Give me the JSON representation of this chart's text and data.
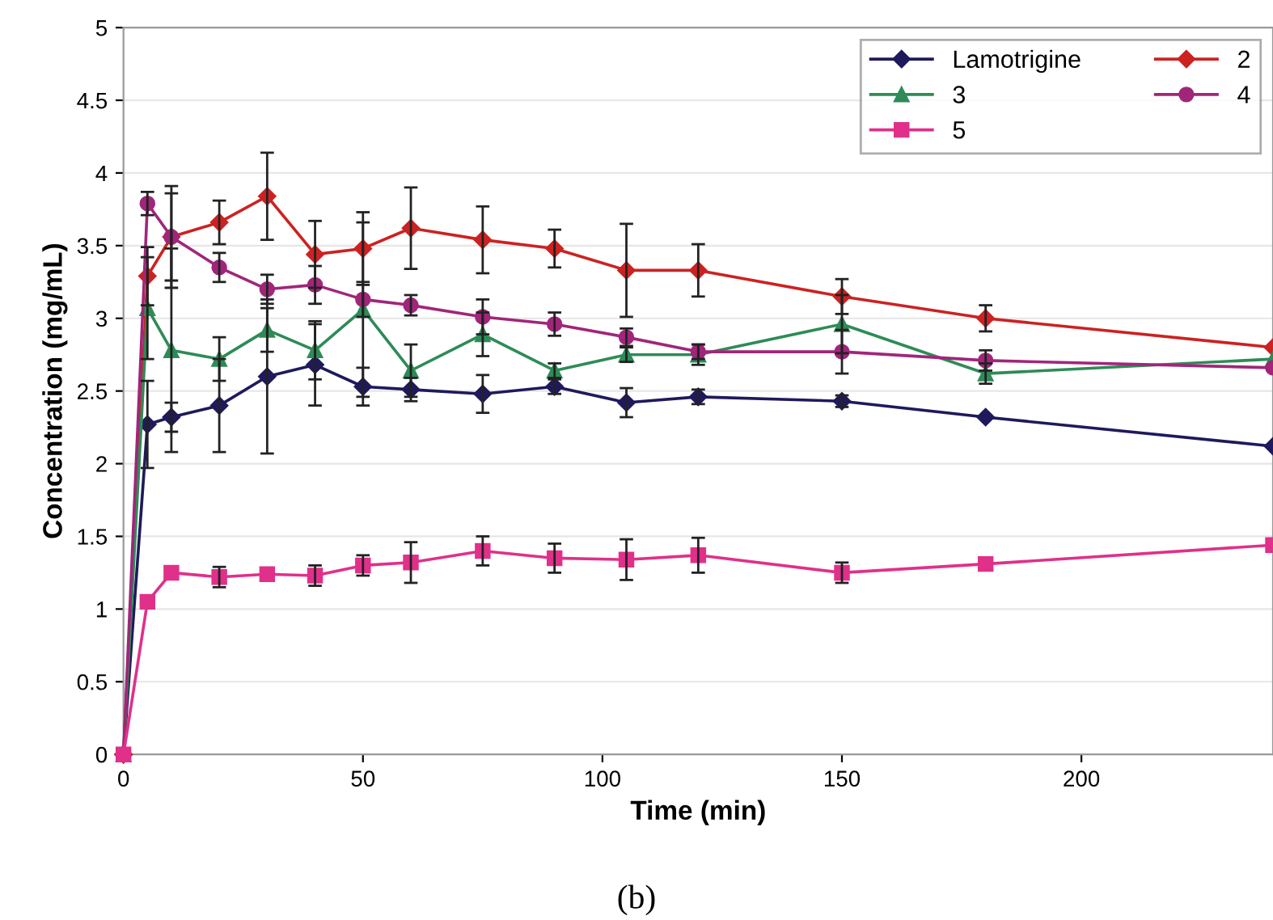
{
  "chart_data": {
    "type": "line",
    "xlabel": "Time (min)",
    "ylabel": "Concentration (mg/mL)",
    "annotations": [
      "(b)"
    ],
    "x": [
      0,
      5,
      10,
      20,
      30,
      40,
      50,
      60,
      75,
      90,
      105,
      120,
      150,
      180,
      240
    ],
    "xlim": [
      0,
      240
    ],
    "xticks": [
      0,
      50,
      100,
      150,
      200
    ],
    "ylim": [
      0,
      5
    ],
    "yticks": [
      0,
      0.5,
      1,
      1.5,
      2,
      2.5,
      3,
      3.5,
      4,
      4.5,
      5
    ],
    "grid": "y",
    "legend": "top right",
    "series": [
      {
        "name": "Lamotrigine",
        "color": "#1f1a5c",
        "marker": "diamond",
        "values": [
          0,
          2.27,
          2.32,
          2.4,
          2.6,
          2.68,
          2.53,
          2.51,
          2.48,
          2.53,
          2.42,
          2.46,
          2.43,
          2.32,
          2.12
        ],
        "errors": [
          null,
          0.3,
          0.1,
          0.32,
          0.53,
          0.28,
          0.13,
          0.08,
          0.13,
          0.05,
          0.1,
          0.05,
          0.04,
          null,
          null
        ]
      },
      {
        "name": "2",
        "color": "#cc2222",
        "marker": "diamond",
        "values": [
          0,
          3.29,
          3.56,
          3.66,
          3.84,
          3.44,
          3.48,
          3.62,
          3.54,
          3.48,
          3.33,
          3.33,
          3.15,
          3.0,
          2.8
        ],
        "errors": [
          null,
          0.2,
          0.35,
          0.15,
          0.3,
          0.23,
          0.25,
          0.28,
          0.23,
          0.13,
          0.32,
          0.18,
          0.12,
          0.09,
          null
        ]
      },
      {
        "name": "3",
        "color": "#2e8b57",
        "marker": "triangle",
        "values": [
          0,
          3.07,
          2.78,
          2.72,
          2.92,
          2.78,
          3.06,
          2.64,
          2.89,
          2.64,
          2.75,
          2.75,
          2.96,
          2.62,
          2.72
        ],
        "errors": [
          null,
          0.35,
          0.7,
          0.15,
          0.15,
          0.2,
          0.6,
          0.18,
          0.15,
          0.05,
          0.05,
          0.07,
          0.2,
          0.07,
          null
        ]
      },
      {
        "name": "4",
        "color": "#a0267a",
        "marker": "circle",
        "values": [
          0,
          3.79,
          3.56,
          3.35,
          3.2,
          3.23,
          3.13,
          3.09,
          3.01,
          2.96,
          2.87,
          2.77,
          2.77,
          2.71,
          2.66
        ],
        "errors": [
          null,
          0.08,
          0.3,
          0.1,
          0.1,
          0.13,
          0.12,
          0.07,
          0.12,
          0.08,
          0.06,
          0.05,
          0.15,
          0.07,
          null
        ]
      },
      {
        "name": "5",
        "color": "#e0308a",
        "marker": "square",
        "values": [
          0,
          1.05,
          1.25,
          1.22,
          1.24,
          1.23,
          1.3,
          1.32,
          1.4,
          1.35,
          1.34,
          1.37,
          1.25,
          1.31,
          1.44
        ],
        "errors": [
          null,
          null,
          null,
          0.07,
          null,
          0.07,
          0.07,
          0.14,
          0.1,
          0.1,
          0.14,
          0.12,
          0.07,
          null,
          null
        ]
      }
    ]
  }
}
